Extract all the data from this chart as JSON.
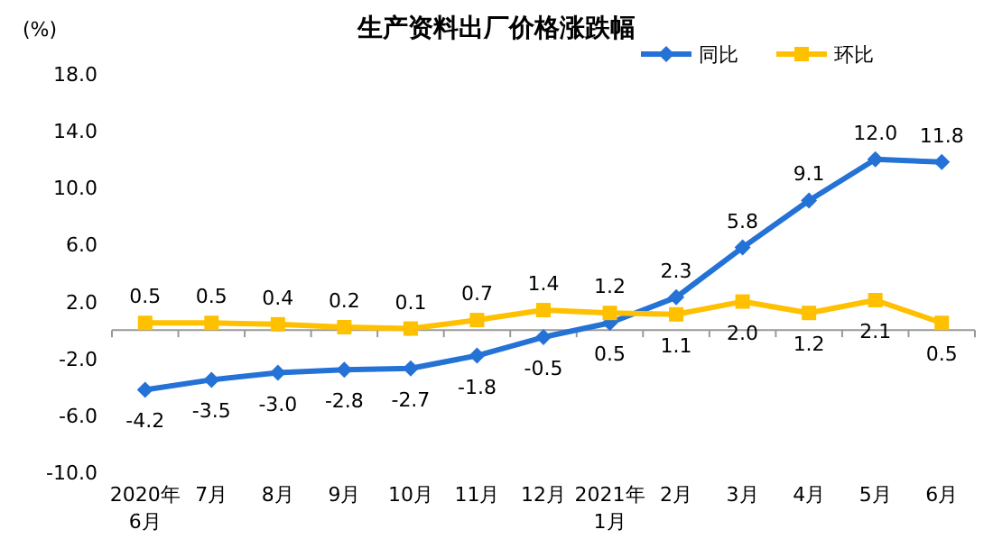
{
  "chart_data": {
    "type": "line",
    "title": "生产资料出厂价格涨跌幅",
    "ylabel": "(%)",
    "categories": [
      "2020年\n6月",
      "7月",
      "8月",
      "9月",
      "10月",
      "11月",
      "12月",
      "2021年\n1月",
      "2月",
      "3月",
      "4月",
      "5月",
      "6月"
    ],
    "series": [
      {
        "name": "同比",
        "color": "#2472d6",
        "marker": "diamond",
        "values": [
          -4.2,
          -3.5,
          -3.0,
          -2.8,
          -2.7,
          -1.8,
          -0.5,
          0.5,
          2.3,
          5.8,
          9.1,
          12.0,
          11.8
        ],
        "value_labels": [
          "-4.2",
          "-3.5",
          "-3.0",
          "-2.8",
          "-2.7",
          "-1.8",
          "-0.5",
          "0.5",
          "2.3",
          "5.8",
          "9.1",
          "12.0",
          "11.8"
        ]
      },
      {
        "name": "环比",
        "color": "#ffc000",
        "marker": "square",
        "values": [
          0.5,
          0.5,
          0.4,
          0.2,
          0.1,
          0.7,
          1.4,
          1.2,
          1.1,
          2.0,
          1.2,
          2.1,
          0.5
        ],
        "value_labels": [
          "0.5",
          "0.5",
          "0.4",
          "0.2",
          "0.1",
          "0.7",
          "1.4",
          "1.2",
          "1.1",
          "2.0",
          "1.2",
          "2.1",
          "0.5"
        ]
      }
    ],
    "ylim": [
      -10,
      18
    ],
    "yticks": [
      {
        "value": -10,
        "label": "-10.0"
      },
      {
        "value": -6,
        "label": "-6.0"
      },
      {
        "value": -2,
        "label": "-2.0"
      },
      {
        "value": 2,
        "label": "2.0"
      },
      {
        "value": 6,
        "label": "6.0"
      },
      {
        "value": 10,
        "label": "10.0"
      },
      {
        "value": 14,
        "label": "14.0"
      },
      {
        "value": 18,
        "label": "18.0"
      }
    ],
    "legend": "top right",
    "grid": false,
    "line_style": "solid"
  }
}
